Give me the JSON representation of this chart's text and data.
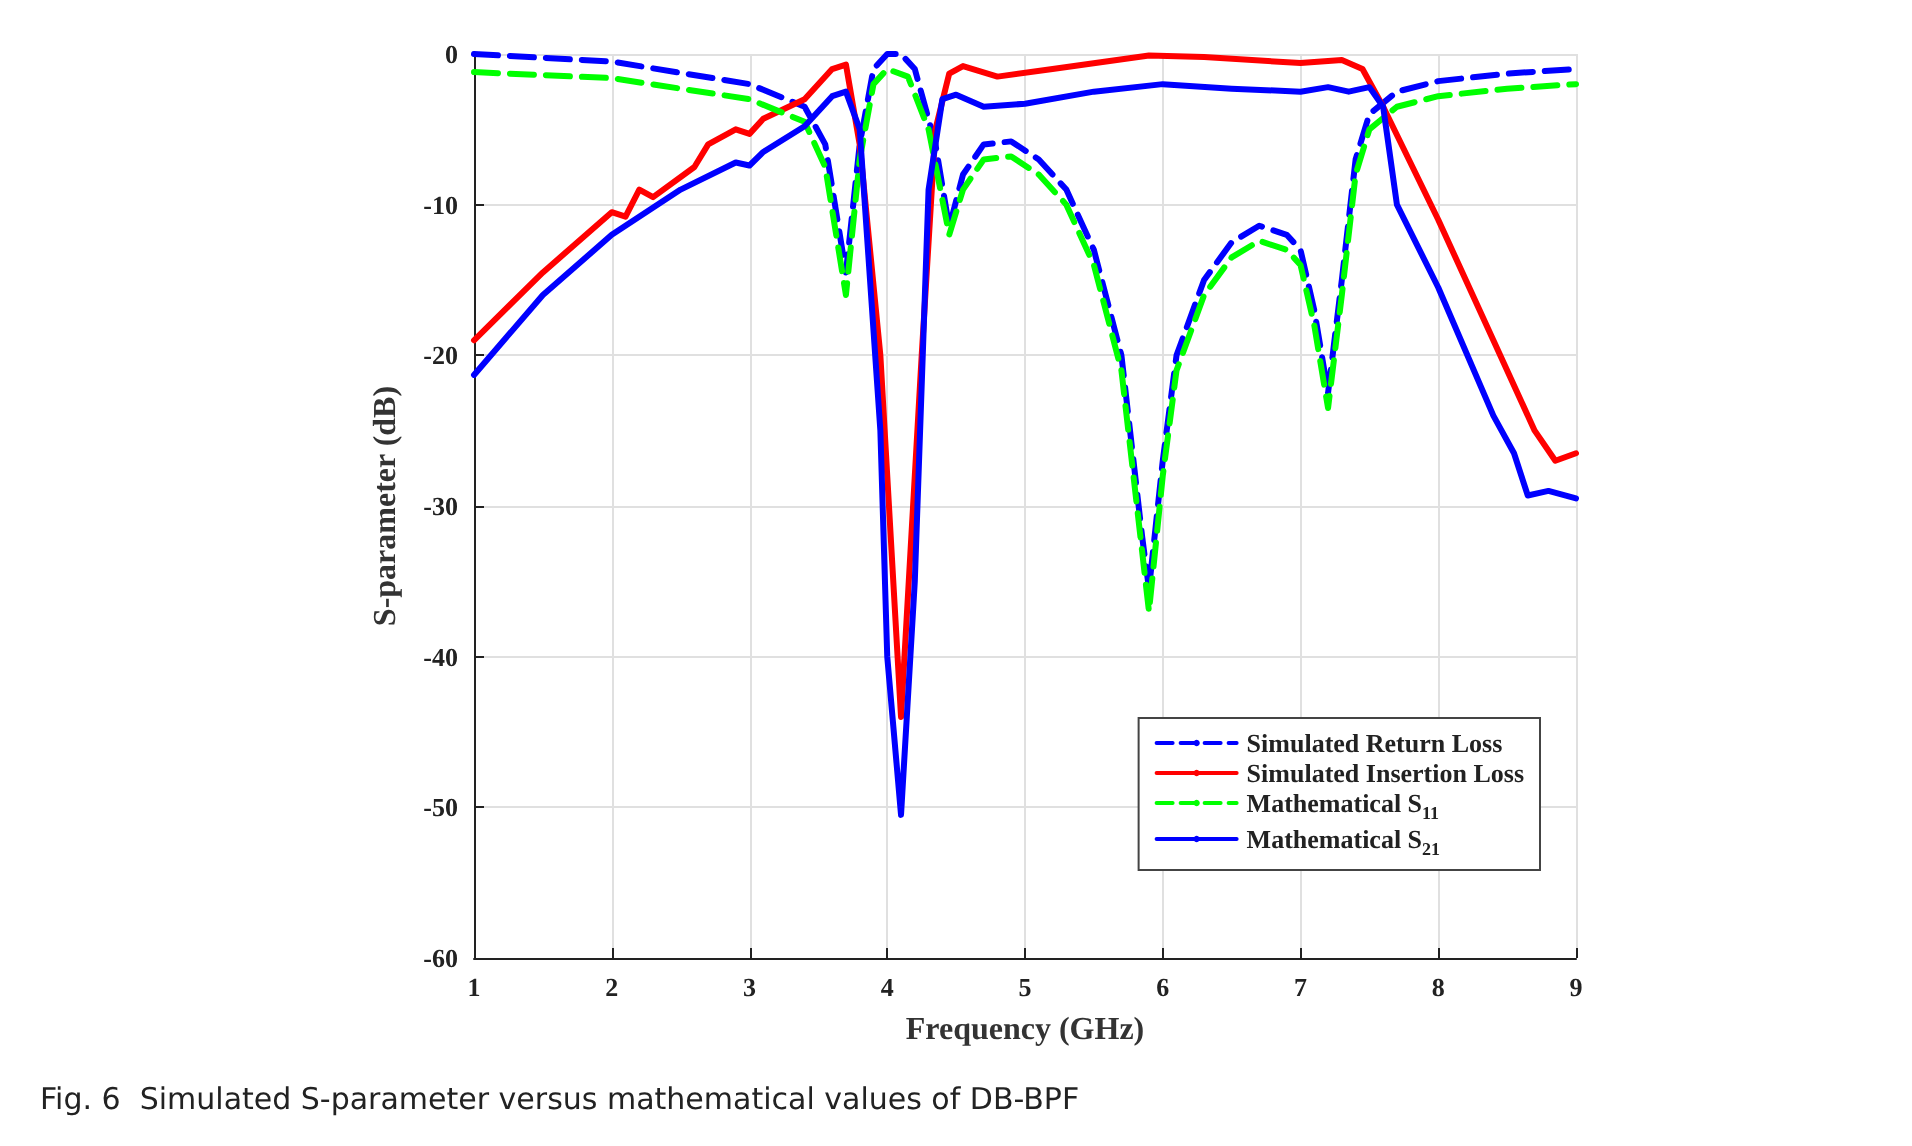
{
  "chart_data": {
    "type": "line",
    "xlabel": "Frequency (GHz)",
    "ylabel": "S-parameter (dB)",
    "xlim": [
      1,
      9
    ],
    "xticks": [
      1,
      2,
      3,
      4,
      5,
      6,
      7,
      8,
      9
    ],
    "ylim": [
      -60,
      0
    ],
    "yticks": [
      -60,
      -50,
      -40,
      -30,
      -20,
      -10,
      0
    ],
    "grid": true,
    "legend": "bottom right",
    "marker": "none",
    "annotations": [
      "Fig. 6  Simulated S-parameter versus mathematical values of DB-BPF"
    ],
    "series": [
      {
        "name": "Simulated Return Loss",
        "color": "#0000ff",
        "line_style": "dashed",
        "x": [
          1,
          2,
          3,
          3.4,
          3.55,
          3.7,
          3.8,
          3.9,
          4.0,
          4.1,
          4.2,
          4.35,
          4.45,
          4.55,
          4.7,
          4.9,
          5.1,
          5.3,
          5.5,
          5.7,
          5.85,
          5.9,
          6.0,
          6.1,
          6.3,
          6.5,
          6.7,
          6.9,
          7.0,
          7.1,
          7.2,
          7.3,
          7.4,
          7.5,
          7.7,
          8,
          8.5,
          9
        ],
        "values": [
          0,
          -0.5,
          -2,
          -3.5,
          -6,
          -14.5,
          -6,
          -1,
          0,
          0,
          -1,
          -6,
          -11.5,
          -8,
          -6,
          -5.8,
          -7,
          -9,
          -13,
          -20,
          -32,
          -35.5,
          -27,
          -20,
          -15,
          -12.5,
          -11.4,
          -12,
          -13,
          -17,
          -22.5,
          -15,
          -7,
          -4,
          -2.5,
          -1.8,
          -1.3,
          -1
        ]
      },
      {
        "name": "Simulated Insertion Loss",
        "color": "#ff0000",
        "line_style": "solid",
        "x": [
          1,
          1.5,
          2,
          2.1,
          2.2,
          2.3,
          2.6,
          2.7,
          2.9,
          3.0,
          3.1,
          3.4,
          3.6,
          3.7,
          3.8,
          3.95,
          4.1,
          4.25,
          4.35,
          4.45,
          4.55,
          4.8,
          5.2,
          5.9,
          6.3,
          7.0,
          7.3,
          7.45,
          7.6,
          8,
          8.4,
          8.7,
          8.85,
          9
        ],
        "values": [
          -19,
          -14.5,
          -10.5,
          -10.8,
          -9,
          -9.5,
          -7.5,
          -6,
          -5,
          -5.3,
          -4.3,
          -3,
          -1,
          -0.7,
          -6,
          -20,
          -44,
          -20,
          -5,
          -1.3,
          -0.8,
          -1.5,
          -1,
          -0.1,
          -0.2,
          -0.6,
          -0.4,
          -1,
          -3.5,
          -11,
          -19,
          -25,
          -27,
          -26.5
        ]
      },
      {
        "name": "Mathematical S$_{11}$",
        "color": "#00ff00",
        "line_style": "dashed",
        "x": [
          1,
          2,
          3,
          3.4,
          3.55,
          3.7,
          3.8,
          3.9,
          4.0,
          4.15,
          4.3,
          4.45,
          4.55,
          4.7,
          4.9,
          5.1,
          5.3,
          5.5,
          5.7,
          5.85,
          5.9,
          6.0,
          6.1,
          6.3,
          6.5,
          6.7,
          6.9,
          7.0,
          7.1,
          7.2,
          7.3,
          7.4,
          7.5,
          7.7,
          8,
          8.5,
          9
        ],
        "values": [
          -1.2,
          -1.6,
          -3,
          -4.5,
          -7.5,
          -16,
          -7,
          -2,
          -1,
          -1.5,
          -5,
          -12,
          -9,
          -7,
          -6.8,
          -8,
          -10,
          -14,
          -21,
          -33,
          -37,
          -28,
          -21,
          -16,
          -13.5,
          -12.4,
          -13,
          -14,
          -18,
          -23.5,
          -16,
          -8,
          -5,
          -3.5,
          -2.8,
          -2.3,
          -2
        ]
      },
      {
        "name": "Mathematical S$_{21}$",
        "color": "#0000ff",
        "line_style": "solid",
        "x": [
          1,
          1.5,
          2,
          2.5,
          2.9,
          3.0,
          3.1,
          3.4,
          3.6,
          3.7,
          3.8,
          3.95,
          4.0,
          4.1,
          4.2,
          4.3,
          4.4,
          4.5,
          4.7,
          5.0,
          5.5,
          6.0,
          6.5,
          7.0,
          7.2,
          7.35,
          7.5,
          7.6,
          7.7,
          8,
          8.4,
          8.55,
          8.65,
          8.8,
          9
        ],
        "values": [
          -21.3,
          -16,
          -12,
          -9,
          -7.2,
          -7.4,
          -6.5,
          -4.8,
          -2.8,
          -2.5,
          -5,
          -25,
          -40,
          -50.5,
          -35,
          -9,
          -3,
          -2.7,
          -3.5,
          -3.3,
          -2.5,
          -2,
          -2.3,
          -2.5,
          -2.2,
          -2.5,
          -2.2,
          -3.5,
          -10,
          -15.5,
          -24,
          -26.5,
          -29.3,
          -29,
          -29.5
        ]
      }
    ]
  }
}
